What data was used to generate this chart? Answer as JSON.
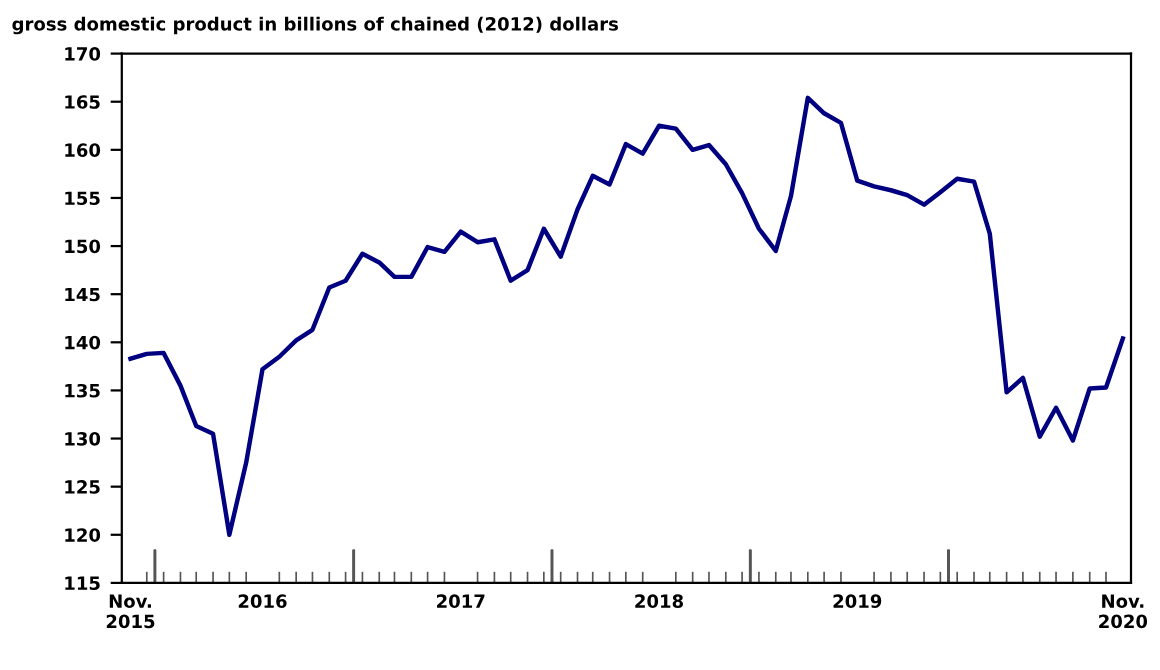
{
  "chart_data": {
    "type": "line",
    "ylabel": "gross domestic product in billions of chained (2012) dollars",
    "x": [
      "2015-11",
      "2015-12",
      "2016-01",
      "2016-02",
      "2016-03",
      "2016-04",
      "2016-05",
      "2016-06",
      "2016-07",
      "2016-08",
      "2016-09",
      "2016-10",
      "2016-11",
      "2016-12",
      "2017-01",
      "2017-02",
      "2017-03",
      "2017-04",
      "2017-05",
      "2017-06",
      "2017-07",
      "2017-08",
      "2017-09",
      "2017-10",
      "2017-11",
      "2017-12",
      "2018-01",
      "2018-02",
      "2018-03",
      "2018-04",
      "2018-05",
      "2018-06",
      "2018-07",
      "2018-08",
      "2018-09",
      "2018-10",
      "2018-11",
      "2018-12",
      "2019-01",
      "2019-02",
      "2019-03",
      "2019-04",
      "2019-05",
      "2019-06",
      "2019-07",
      "2019-08",
      "2019-09",
      "2019-10",
      "2019-11",
      "2019-12",
      "2020-01",
      "2020-02",
      "2020-03",
      "2020-04",
      "2020-05",
      "2020-06",
      "2020-07",
      "2020-08",
      "2020-09",
      "2020-10",
      "2020-11"
    ],
    "series": [
      {
        "color": "#000080",
        "values": [
          138.3,
          138.8,
          138.9,
          135.5,
          131.3,
          130.5,
          120.0,
          127.5,
          137.2,
          138.5,
          140.2,
          141.3,
          145.7,
          146.4,
          149.2,
          148.3,
          146.8,
          146.8,
          149.9,
          149.4,
          151.5,
          150.4,
          150.7,
          146.4,
          147.5,
          151.8,
          148.9,
          153.8,
          157.3,
          156.4,
          160.6,
          159.6,
          162.5,
          162.2,
          160.0,
          160.5,
          158.5,
          155.5,
          151.8,
          149.5,
          155.2,
          165.4,
          163.8,
          162.8,
          156.8,
          156.2,
          155.8,
          155.3,
          154.3,
          155.6,
          157.0,
          156.7,
          151.3,
          134.8,
          136.3,
          130.2,
          133.2,
          129.8,
          135.2,
          135.3,
          140.4
        ]
      }
    ],
    "xlim": [
      "2015-10-16",
      "2020-11-16"
    ],
    "xticks": [
      {
        "value": "2015-11-01",
        "label": "Nov.\n2015"
      },
      {
        "value": "2015-12-16",
        "label": null
      },
      {
        "value": "2016-07-01",
        "label": "2016"
      },
      {
        "value": "2016-12-16",
        "label": null
      },
      {
        "value": "2017-07-01",
        "label": "2017"
      },
      {
        "value": "2017-12-16",
        "label": null
      },
      {
        "value": "2018-07-01",
        "label": "2018"
      },
      {
        "value": "2018-12-16",
        "label": null
      },
      {
        "value": "2019-07-01",
        "label": "2019"
      },
      {
        "value": "2019-12-16",
        "label": null
      },
      {
        "value": "2020-11-01",
        "label": "Nov.\n2020"
      }
    ],
    "ylim": [
      115,
      170
    ],
    "yticks": [
      115,
      120,
      125,
      130,
      135,
      140,
      145,
      150,
      155,
      160,
      165,
      170
    ],
    "grid": false,
    "marker": "none",
    "line_style": "solid"
  }
}
